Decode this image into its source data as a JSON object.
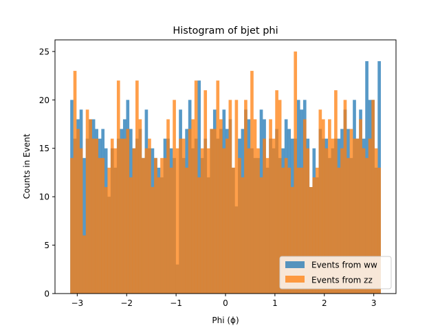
{
  "chart_data": {
    "type": "bar",
    "title": "Histogram of bjet phi",
    "xlabel": "Phi (ϕ)",
    "ylabel": "Counts in Event",
    "xlim": [
      -3.45,
      3.45
    ],
    "ylim": [
      0,
      26.2
    ],
    "xticks": [
      -3,
      -2,
      -1,
      0,
      1,
      2,
      3
    ],
    "xtick_labels": [
      "−3",
      "−2",
      "−1",
      "0",
      "1",
      "2",
      "3"
    ],
    "yticks": [
      0,
      5,
      10,
      15,
      20,
      25
    ],
    "ytick_labels": [
      "0",
      "5",
      "10",
      "15",
      "20",
      "25"
    ],
    "bins": 100,
    "range": [
      -3.14159,
      3.14159
    ],
    "grid": false,
    "legend_position": "bottom-right",
    "series": [
      {
        "name": "Events from ww",
        "color": "#1f77b4",
        "opacity": 0.75,
        "values": [
          20,
          16,
          18,
          19,
          14,
          16,
          18,
          18,
          17,
          16,
          17,
          15,
          10,
          15,
          13,
          16,
          17,
          18,
          20,
          17,
          15,
          16,
          17,
          14,
          19,
          15,
          15,
          14,
          13,
          12,
          16,
          16,
          15,
          14,
          3,
          19,
          14,
          17,
          20,
          15,
          16,
          22,
          14,
          16,
          12,
          17,
          19,
          16,
          17,
          19,
          17,
          18,
          13,
          9,
          16,
          17,
          19,
          18,
          15,
          14,
          14,
          19,
          18,
          13,
          16,
          15,
          17,
          14,
          15,
          18,
          17,
          16,
          16,
          20,
          19,
          20,
          16,
          11,
          15,
          12,
          17,
          16,
          16,
          14,
          15,
          16,
          16,
          17,
          19,
          17,
          14,
          20,
          16,
          19,
          16,
          24,
          20,
          20,
          13,
          24
        ]
      },
      {
        "name": "Events from zz",
        "color": "#ff7f0e",
        "opacity": 0.75,
        "values": [
          14,
          23,
          17,
          15,
          6,
          19,
          18,
          16,
          16,
          14,
          14,
          11,
          13,
          16,
          15,
          22,
          16,
          16,
          17,
          12,
          15,
          22,
          18,
          14,
          15,
          16,
          11,
          14,
          12,
          14,
          14,
          18,
          13,
          20,
          15,
          16,
          16,
          13,
          17,
          18,
          22,
          12,
          15,
          21,
          15,
          17,
          17,
          22,
          18,
          15,
          16,
          20,
          13,
          20,
          14,
          12,
          20,
          15,
          23,
          18,
          15,
          12,
          16,
          14,
          18,
          16,
          21,
          20,
          13,
          14,
          13,
          11,
          25,
          13,
          13,
          18,
          15,
          11,
          12,
          13,
          19,
          18,
          15,
          18,
          16,
          21,
          13,
          15,
          20,
          14,
          17,
          16,
          16,
          18,
          15,
          14,
          16,
          20,
          15,
          13
        ]
      }
    ]
  }
}
